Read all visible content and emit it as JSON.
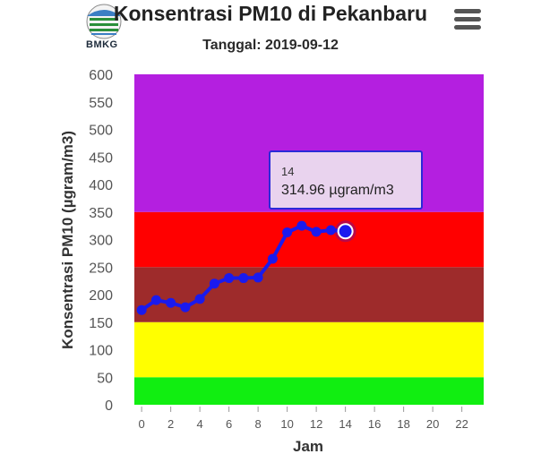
{
  "header": {
    "title": "Konsentrasi PM10 di Pekanbaru",
    "subtitle": "Tanggal: 2019-09-12",
    "logo_text": "BMKG"
  },
  "colors": {
    "series": "#1a1aee",
    "band_good": "#11ee11",
    "band_moderate": "#ffff00",
    "band_unhealthy": "#9e2b2b",
    "band_very_unhealthy": "#ff0000",
    "band_hazardous": "#b41fe0"
  },
  "chart_data": {
    "type": "line",
    "title": "Konsentrasi PM10 di Pekanbaru",
    "subtitle": "Tanggal: 2019-09-12",
    "xlabel": "Jam",
    "ylabel": "Konsentrasi PM10 (µgram/m3)",
    "xlim": [
      -0.5,
      23.5
    ],
    "ylim": [
      0,
      600
    ],
    "x_ticks": [
      "0",
      "2",
      "4",
      "6",
      "8",
      "10",
      "12",
      "14",
      "16",
      "18",
      "20",
      "22"
    ],
    "y_ticks": [
      "0",
      "50",
      "100",
      "150",
      "200",
      "250",
      "300",
      "350",
      "400",
      "450",
      "500",
      "550",
      "600"
    ],
    "bands": [
      {
        "from": 0,
        "to": 50,
        "color": "#11ee11"
      },
      {
        "from": 50,
        "to": 150,
        "color": "#ffff00"
      },
      {
        "from": 150,
        "to": 250,
        "color": "#9e2b2b"
      },
      {
        "from": 250,
        "to": 350,
        "color": "#ff0000"
      },
      {
        "from": 350,
        "to": 600,
        "color": "#b41fe0"
      }
    ],
    "series": [
      {
        "x": [
          0,
          1,
          2,
          3,
          4,
          5,
          6,
          7,
          8,
          9,
          10,
          11,
          12,
          13,
          14
        ],
        "values": [
          172,
          190,
          185,
          177,
          192,
          220,
          230,
          230,
          231,
          265,
          313,
          325,
          314,
          317,
          314.96
        ]
      }
    ],
    "tooltip": {
      "x_label": "14",
      "value_label": "314.96 µgram/m3"
    }
  }
}
